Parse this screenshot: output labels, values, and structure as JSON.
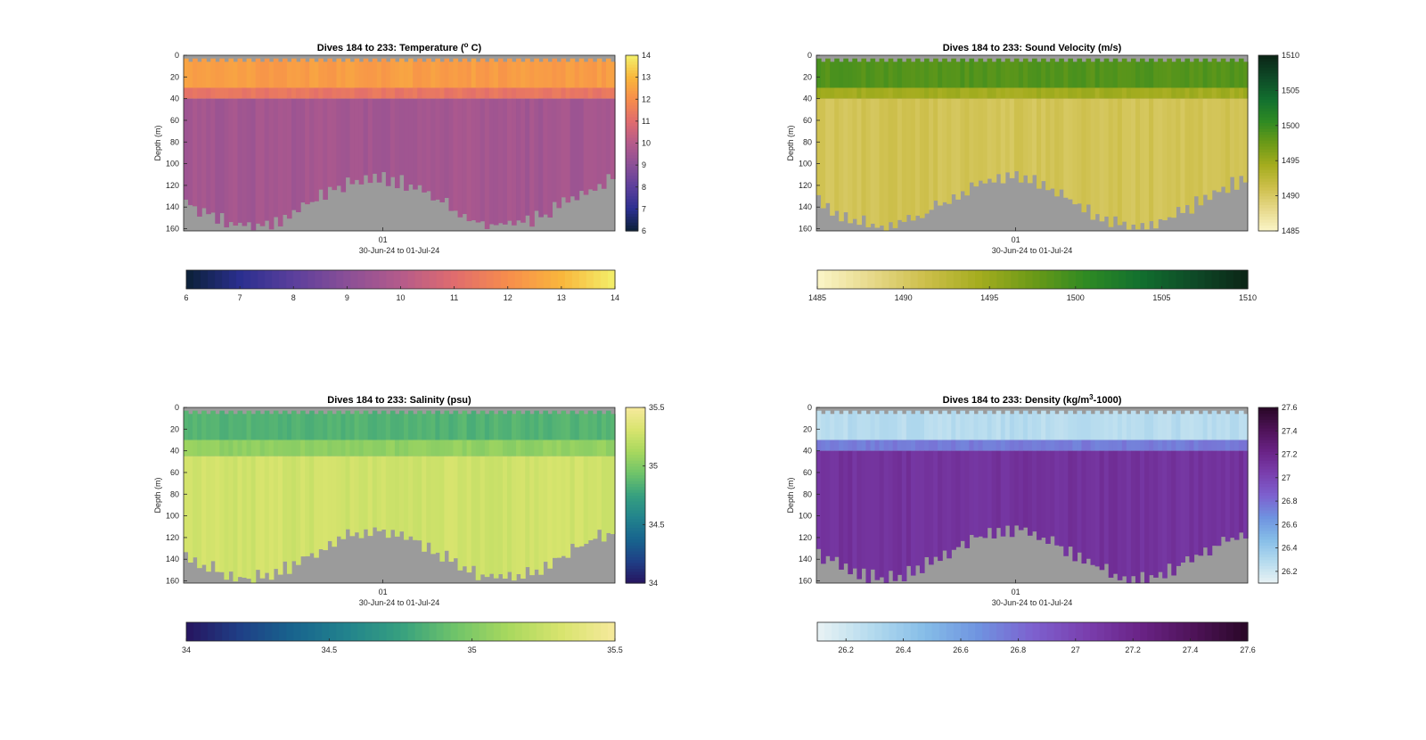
{
  "chart_data": [
    {
      "type": "heatmap",
      "title": "Dives 184 to 233: Temperature (",
      "title_super": "o",
      "title_suffix": " C)",
      "ylabel": "Depth (m)",
      "xlabel": "30-Jun-24 to 01-Jul-24",
      "x_tick_labels": [
        "01"
      ],
      "y_ticks": [
        0,
        20,
        40,
        60,
        80,
        100,
        120,
        140,
        160
      ],
      "ylim": [
        0,
        162
      ],
      "y_reversed": true,
      "clim": [
        6,
        14
      ],
      "colorbar_ticks": [
        6,
        7,
        8,
        9,
        10,
        11,
        12,
        13,
        14
      ],
      "hcolorbar_ticks": [
        6,
        7,
        8,
        9,
        10,
        11,
        12,
        13,
        14
      ],
      "colormap": [
        "#0b2036",
        "#2a2f8f",
        "#5b3f9c",
        "#8a4f97",
        "#b45b8b",
        "#e06c6e",
        "#f78d4c",
        "#f9b63c",
        "#f3f06a"
      ],
      "layers": [
        {
          "from": 0,
          "to": 30,
          "value": 12.4
        },
        {
          "from": 30,
          "to": 40,
          "value": 11.3
        },
        {
          "from": 40,
          "to": 162,
          "value": 9.6
        }
      ]
    },
    {
      "type": "heatmap",
      "title": "Dives 184 to 233: Sound Velocity (m/s)",
      "ylabel": "Depth (m)",
      "xlabel": "30-Jun-24 to 01-Jul-24",
      "x_tick_labels": [
        "01"
      ],
      "y_ticks": [
        0,
        20,
        40,
        60,
        80,
        100,
        120,
        140,
        160
      ],
      "ylim": [
        0,
        162
      ],
      "y_reversed": true,
      "clim": [
        1485,
        1510
      ],
      "colorbar_ticks": [
        1485,
        1490,
        1495,
        1500,
        1505,
        1510
      ],
      "hcolorbar_ticks": [
        1485,
        1490,
        1495,
        1500,
        1505,
        1510
      ],
      "colormap": [
        "#fbf6c8",
        "#e7d98b",
        "#cdbf4b",
        "#a5ad1f",
        "#6c9a17",
        "#2f8a23",
        "#12702f",
        "#0e4a27",
        "#0b2416"
      ],
      "layers": [
        {
          "from": 0,
          "to": 30,
          "value": 1498.8
        },
        {
          "from": 30,
          "to": 40,
          "value": 1494.5
        },
        {
          "from": 40,
          "to": 162,
          "value": 1490.7
        }
      ]
    },
    {
      "type": "heatmap",
      "title": "Dives 184 to 233: Salinity (psu)",
      "ylabel": "Depth (m)",
      "xlabel": "30-Jun-24 to 01-Jul-24",
      "x_tick_labels": [
        "01"
      ],
      "y_ticks": [
        0,
        20,
        40,
        60,
        80,
        100,
        120,
        140,
        160
      ],
      "ylim": [
        0,
        162
      ],
      "y_reversed": true,
      "clim": [
        34,
        35.5
      ],
      "colorbar_ticks": [
        34,
        34.5,
        35,
        35.5
      ],
      "hcolorbar_ticks": [
        34,
        34.5,
        35,
        35.5
      ],
      "colormap": [
        "#26145f",
        "#1f3f86",
        "#18648e",
        "#22838d",
        "#36a07f",
        "#6ec36a",
        "#a8d85e",
        "#d8e46e",
        "#f6e99c"
      ],
      "layers": [
        {
          "from": 0,
          "to": 30,
          "value": 34.85
        },
        {
          "from": 30,
          "to": 45,
          "value": 35.05
        },
        {
          "from": 45,
          "to": 162,
          "value": 35.28
        }
      ]
    },
    {
      "type": "heatmap",
      "title": "Dives 184 to 233: Density (kg/m",
      "title_super": "3",
      "title_suffix": "-1000)",
      "ylabel": "Depth (m)",
      "xlabel": "30-Jun-24 to 01-Jul-24",
      "x_tick_labels": [
        "01"
      ],
      "y_ticks": [
        0,
        20,
        40,
        60,
        80,
        100,
        120,
        140,
        160
      ],
      "ylim": [
        0,
        162
      ],
      "y_reversed": true,
      "clim": [
        26.1,
        27.6
      ],
      "colorbar_ticks": [
        26.2,
        26.4,
        26.6,
        26.8,
        27,
        27.2,
        27.4,
        27.6
      ],
      "hcolorbar_ticks": [
        26.2,
        26.4,
        26.6,
        26.8,
        27,
        27.2,
        27.4,
        27.6
      ],
      "colormap": [
        "#e9f3f4",
        "#b5dbee",
        "#86bde8",
        "#6f93e0",
        "#7d61cf",
        "#7a3fae",
        "#6a2386",
        "#4e1358",
        "#290726"
      ],
      "layers": [
        {
          "from": 0,
          "to": 30,
          "value": 26.28
        },
        {
          "from": 30,
          "to": 40,
          "value": 26.75
        },
        {
          "from": 40,
          "to": 162,
          "value": 27.12
        }
      ]
    }
  ]
}
